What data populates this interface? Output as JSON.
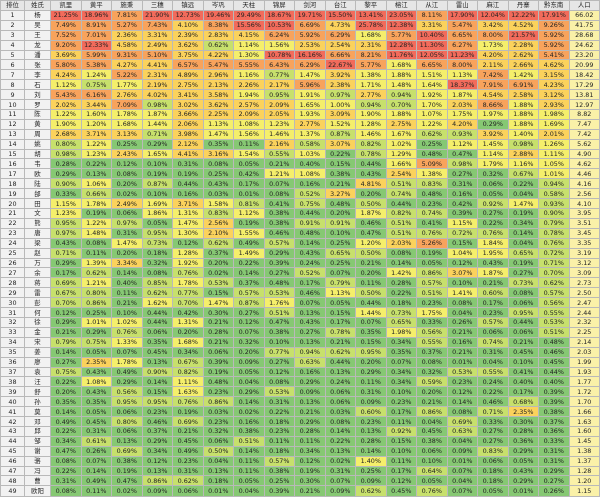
{
  "table": {
    "header": [
      "排位",
      "姓氏",
      "凯里",
      "黄平",
      "施秉",
      "三穗",
      "镇远",
      "岑巩",
      "天柱",
      "锦屏",
      "剑河",
      "台江",
      "黎平",
      "榕江",
      "从江",
      "雷山",
      "麻江",
      "丹寨",
      "黔东南",
      "人口"
    ],
    "rows": [
      [
        "1",
        "杨",
        "21.25%",
        "18.96%",
        "7.81%",
        "21.90%",
        "12.73%",
        "19.46%",
        "29.49%",
        "18.67%",
        "19.71%",
        "15.50%",
        "13.41%",
        "23.05%",
        "8.11%",
        "17.90%",
        "12.04%",
        "12.22%",
        "17.91%",
        "66.02"
      ],
      [
        "2",
        "吴",
        "7.49%",
        "8.91%",
        "5.27%",
        "7.43%",
        "4.10%",
        "8.38%",
        "15.56%",
        "10.53%",
        "6.69%",
        "4.73%",
        "25.78%",
        "12.38%",
        "3.31%",
        "5.47%",
        "3.42%",
        "4.52%",
        "9.26%",
        "41.75"
      ],
      [
        "3",
        "王",
        "7.52%",
        "7.01%",
        "2.36%",
        "3.31%",
        "2.39%",
        "2.83%",
        "4.15%",
        "6.24%",
        "5.92%",
        "6.29%",
        "1.68%",
        "5.77%",
        "10.40%",
        "6.65%",
        "8.00%",
        "21.57%",
        "5.92%",
        "28.68"
      ],
      [
        "4",
        "龙",
        "9.20%",
        "12.33%",
        "4.58%",
        "2.49%",
        "3.62%",
        "0.62%",
        "1.14%",
        "1.56%",
        "2.53%",
        "2.54%",
        "2.31%",
        "12.28%",
        "11.30%",
        "6.27%",
        "1.73%",
        "2.28%",
        "5.92%",
        "24.62"
      ],
      [
        "5",
        "潘",
        "3.69%",
        "5.99%",
        "9.31%",
        "5.10%",
        "3.75%",
        "4.22%",
        "1.30%",
        "10.78%",
        "16.16%",
        "6.66%",
        "8.21%",
        "11.76%",
        "12.05%",
        "11.23%",
        "4.20%",
        "2.62%",
        "5.41%",
        "23.20"
      ],
      [
        "6",
        "张",
        "5.80%",
        "5.38%",
        "4.27%",
        "4.41%",
        "6.57%",
        "5.47%",
        "5.55%",
        "6.43%",
        "6.29%",
        "22.67%",
        "5.77%",
        "1.68%",
        "6.65%",
        "8.00%",
        "2.11%",
        "2.66%",
        "4.62%",
        "20.99"
      ],
      [
        "7",
        "李",
        "4.24%",
        "1.24%",
        "5.22%",
        "2.31%",
        "4.89%",
        "2.96%",
        "1.16%",
        "0.77%",
        "1.47%",
        "3.92%",
        "1.38%",
        "1.88%",
        "1.51%",
        "1.13%",
        "7.42%",
        "1.42%",
        "3.15%",
        "18.42"
      ],
      [
        "8",
        "石",
        "1.12%",
        "0.75%",
        "1.77%",
        "2.19%",
        "2.75%",
        "2.13%",
        "2.26%",
        "2.17%",
        "5.96%",
        "2.38%",
        "1.71%",
        "1.48%",
        "1.64%",
        "18.37%",
        "7.91%",
        "6.91%",
        "4.23%",
        "17.29"
      ],
      [
        "9",
        "刘",
        "5.43%",
        "6.16%",
        "2.76%",
        "4.02%",
        "3.41%",
        "3.58%",
        "1.94%",
        "0.95%",
        "1.91%",
        "0.97%",
        "2.77%",
        "0.94%",
        "1.92%",
        "1.87%",
        "4.54%",
        "2.58%",
        "3.12%",
        "13.81"
      ],
      [
        "10",
        "罗",
        "2.02%",
        "3.44%",
        "7.09%",
        "0.98%",
        "3.02%",
        "3.62%",
        "2.57%",
        "2.09%",
        "1.65%",
        "1.00%",
        "0.94%",
        "0.70%",
        "1.70%",
        "2.03%",
        "8.66%",
        "1.88%",
        "2.93%",
        "12.97"
      ],
      [
        "11",
        "陈",
        "1.22%",
        "1.60%",
        "1.78%",
        "1.87%",
        "3.66%",
        "2.25%",
        "2.09%",
        "2.05%",
        "1.93%",
        "3.09%",
        "1.90%",
        "1.88%",
        "1.07%",
        "1.75%",
        "1.97%",
        "1.88%",
        "1.98%",
        "8.82"
      ],
      [
        "12",
        "黄",
        "1.90%",
        "1.20%",
        "1.68%",
        "1.44%",
        "2.06%",
        "1.13%",
        "1.08%",
        "1.23%",
        "2.77%",
        "1.52%",
        "1.28%",
        "2.75%",
        "1.22%",
        "4.20%",
        "0.29%",
        "1.88%",
        "1.69%",
        "7.47"
      ],
      [
        "13",
        "周",
        "2.68%",
        "3.71%",
        "3.13%",
        "0.71%",
        "3.98%",
        "1.47%",
        "1.56%",
        "1.46%",
        "1.37%",
        "0.87%",
        "1.46%",
        "1.67%",
        "0.62%",
        "0.93%",
        "3.92%",
        "1.40%",
        "2.01%",
        "7.42"
      ],
      [
        "14",
        "姚",
        "0.80%",
        "1.22%",
        "0.25%",
        "0.29%",
        "2.12%",
        "0.35%",
        "0.11%",
        "2.16%",
        "0.58%",
        "3.07%",
        "0.82%",
        "1.02%",
        "0.25%",
        "1.12%",
        "1.45%",
        "0.98%",
        "1.26%",
        "5.62"
      ],
      [
        "15",
        "胡",
        "0.98%",
        "1.23%",
        "2.43%",
        "1.65%",
        "4.41%",
        "3.16%",
        "1.54%",
        "0.55%",
        "1.03%",
        "0.22%",
        "0.78%",
        "1.29%",
        "0.48%",
        "0.47%",
        "1.14%",
        "2.88%",
        "1.11%",
        "4.90"
      ],
      [
        "16",
        "韦",
        "0.28%",
        "0.22%",
        "0.12%",
        "0.10%",
        "0.31%",
        "0.08%",
        "0.05%",
        "0.21%",
        "0.40%",
        "0.15%",
        "0.44%",
        "1.66%",
        "5.09%",
        "0.98%",
        "1.79%",
        "1.16%",
        "1.05%",
        "4.62"
      ],
      [
        "17",
        "欧",
        "0.29%",
        "0.13%",
        "0.08%",
        "0.19%",
        "0.19%",
        "0.25%",
        "0.42%",
        "1.21%",
        "1.08%",
        "0.38%",
        "0.43%",
        "2.54%",
        "1.38%",
        "0.27%",
        "0.32%",
        "0.67%",
        "1.01%",
        "4.46"
      ],
      [
        "18",
        "陆",
        "0.90%",
        "1.06%",
        "0.20%",
        "0.87%",
        "0.44%",
        "0.43%",
        "0.17%",
        "0.07%",
        "0.16%",
        "0.21%",
        "4.81%",
        "0.51%",
        "0.83%",
        "0.31%",
        "0.06%",
        "0.22%",
        "0.94%",
        "4.16"
      ],
      [
        "19",
        "邰",
        "0.33%",
        "0.66%",
        "0.02%",
        "0.10%",
        "0.16%",
        "0.03%",
        "0.01%",
        "0.08%",
        "0.52%",
        "3.27%",
        "0.20%",
        "0.74%",
        "0.48%",
        "0.16%",
        "0.05%",
        "0.04%",
        "0.58%",
        "2.56"
      ],
      [
        "20",
        "田",
        "1.15%",
        "1.78%",
        "2.49%",
        "1.69%",
        "3.71%",
        "1.58%",
        "0.81%",
        "0.41%",
        "0.75%",
        "0.48%",
        "0.50%",
        "0.44%",
        "0.23%",
        "0.42%",
        "0.92%",
        "1.47%",
        "0.93%",
        "4.10"
      ],
      [
        "21",
        "文",
        "1.23%",
        "0.19%",
        "0.06%",
        "1.86%",
        "1.31%",
        "0.83%",
        "1.12%",
        "0.38%",
        "0.44%",
        "0.20%",
        "1.87%",
        "0.82%",
        "0.74%",
        "0.39%",
        "0.27%",
        "0.19%",
        "0.90%",
        "3.95"
      ],
      [
        "22",
        "熊",
        "0.95%",
        "1.22%",
        "0.97%",
        "0.05%",
        "1.47%",
        "2.56%",
        "0.19%",
        "0.38%",
        "0.91%",
        "0.91%",
        "0.46%",
        "0.51%",
        "0.41%",
        "1.15%",
        "0.22%",
        "0.34%",
        "0.79%",
        "3.51"
      ],
      [
        "23",
        "唐",
        "0.97%",
        "1.48%",
        "0.31%",
        "0.95%",
        "1.30%",
        "2.10%",
        "1.55%",
        "0.46%",
        "0.48%",
        "0.10%",
        "0.47%",
        "0.51%",
        "0.76%",
        "0.72%",
        "0.76%",
        "0.14%",
        "0.78%",
        "3.45"
      ],
      [
        "24",
        "梁",
        "0.43%",
        "0.08%",
        "1.47%",
        "0.73%",
        "0.12%",
        "0.62%",
        "0.49%",
        "0.57%",
        "0.14%",
        "0.25%",
        "1.20%",
        "2.03%",
        "5.26%",
        "0.15%",
        "1.84%",
        "0.04%",
        "0.76%",
        "3.35"
      ],
      [
        "25",
        "赵",
        "0.71%",
        "0.11%",
        "0.20%",
        "0.18%",
        "1.28%",
        "0.37%",
        "1.49%",
        "0.29%",
        "0.43%",
        "0.65%",
        "0.50%",
        "0.08%",
        "0.19%",
        "1.04%",
        "1.95%",
        "0.65%",
        "0.72%",
        "3.19"
      ],
      [
        "26",
        "万",
        "0.29%",
        "1.39%",
        "3.34%",
        "0.32%",
        "1.92%",
        "0.20%",
        "0.22%",
        "0.39%",
        "0.24%",
        "0.25%",
        "0.21%",
        "0.14%",
        "0.05%",
        "0.12%",
        "0.43%",
        "0.19%",
        "0.71%",
        "3.12"
      ],
      [
        "27",
        "余",
        "0.17%",
        "0.62%",
        "0.14%",
        "0.08%",
        "0.76%",
        "0.02%",
        "0.14%",
        "0.27%",
        "0.52%",
        "0.07%",
        "0.20%",
        "1.42%",
        "0.86%",
        "3.07%",
        "1.87%",
        "0.27%",
        "0.70%",
        "3.09"
      ],
      [
        "28",
        "蒋",
        "0.69%",
        "1.21%",
        "0.40%",
        "0.85%",
        "1.78%",
        "0.53%",
        "0.37%",
        "0.48%",
        "0.17%",
        "0.79%",
        "0.11%",
        "0.28%",
        "0.57%",
        "0.10%",
        "0.21%",
        "0.73%",
        "0.62%",
        "2.73"
      ],
      [
        "29",
        "雷",
        "0.67%",
        "0.80%",
        "0.11%",
        "0.62%",
        "0.77%",
        "0.15%",
        "0.57%",
        "0.53%",
        "0.46%",
        "1.13%",
        "0.50%",
        "0.22%",
        "0.51%",
        "1.41%",
        "0.60%",
        "0.08%",
        "0.57%",
        "2.50"
      ],
      [
        "30",
        "彭",
        "0.70%",
        "0.86%",
        "0.21%",
        "1.62%",
        "0.70%",
        "1.47%",
        "0.87%",
        "1.76%",
        "0.07%",
        "0.05%",
        "0.44%",
        "0.18%",
        "0.23%",
        "0.08%",
        "0.17%",
        "0.06%",
        "0.56%",
        "2.47"
      ],
      [
        "31",
        "何",
        "0.12%",
        "0.25%",
        "0.10%",
        "0.44%",
        "0.42%",
        "0.30%",
        "0.27%",
        "0.51%",
        "0.13%",
        "0.15%",
        "1.44%",
        "0.73%",
        "1.75%",
        "0.04%",
        "0.23%",
        "0.95%",
        "0.55%",
        "2.44"
      ],
      [
        "32",
        "徐",
        "0.29%",
        "1.01%",
        "1.02%",
        "0.44%",
        "1.31%",
        "0.21%",
        "0.12%",
        "0.47%",
        "0.43%",
        "0.17%",
        "0.07%",
        "0.65%",
        "0.33%",
        "0.26%",
        "0.57%",
        "0.44%",
        "0.53%",
        "2.32"
      ],
      [
        "33",
        "金",
        "0.21%",
        "0.29%",
        "0.76%",
        "0.06%",
        "0.20%",
        "0.28%",
        "0.07%",
        "0.38%",
        "0.27%",
        "0.78%",
        "0.35%",
        "1.98%",
        "0.56%",
        "0.21%",
        "0.06%",
        "0.06%",
        "0.51%",
        "2.25"
      ],
      [
        "34",
        "宋",
        "0.79%",
        "0.75%",
        "1.33%",
        "0.35%",
        "1.68%",
        "0.21%",
        "0.32%",
        "0.10%",
        "0.13%",
        "0.21%",
        "0.15%",
        "0.34%",
        "0.55%",
        "0.16%",
        "0.74%",
        "0.21%",
        "0.48%",
        "2.14"
      ],
      [
        "35",
        "姜",
        "0.14%",
        "0.05%",
        "0.07%",
        "0.45%",
        "0.34%",
        "0.06%",
        "0.20%",
        "0.77%",
        "0.94%",
        "0.62%",
        "0.95%",
        "0.35%",
        "0.37%",
        "0.21%",
        "0.31%",
        "0.45%",
        "0.46%",
        "2.03"
      ],
      [
        "36",
        "廖",
        "0.27%",
        "2.35%",
        "1.78%",
        "0.13%",
        "0.67%",
        "0.39%",
        "0.09%",
        "0.27%",
        "0.63%",
        "0.44%",
        "0.20%",
        "0.07%",
        "0.08%",
        "0.01%",
        "0.04%",
        "0.10%",
        "0.45%",
        "1.99"
      ],
      [
        "37",
        "袁",
        "0.75%",
        "0.43%",
        "0.49%",
        "0.90%",
        "0.82%",
        "0.19%",
        "0.05%",
        "0.12%",
        "0.16%",
        "0.13%",
        "0.29%",
        "0.34%",
        "0.32%",
        "0.53%",
        "0.55%",
        "0.41%",
        "0.44%",
        "1.93"
      ],
      [
        "38",
        "汪",
        "0.22%",
        "1.08%",
        "0.29%",
        "0.14%",
        "1.11%",
        "0.48%",
        "0.04%",
        "0.08%",
        "0.29%",
        "0.24%",
        "0.11%",
        "0.34%",
        "0.59%",
        "0.23%",
        "0.24%",
        "0.40%",
        "0.40%",
        "1.77"
      ],
      [
        "39",
        "舒",
        "0.20%",
        "0.43%",
        "0.56%",
        "0.15%",
        "1.63%",
        "0.23%",
        "0.29%",
        "0.53%",
        "0.09%",
        "0.06%",
        "0.31%",
        "0.10%",
        "0.20%",
        "0.12%",
        "0.22%",
        "0.17%",
        "0.39%",
        "1.72"
      ],
      [
        "40",
        "孙",
        "0.35%",
        "0.35%",
        "0.95%",
        "0.95%",
        "0.76%",
        "0.86%",
        "0.14%",
        "0.31%",
        "0.13%",
        "0.06%",
        "0.09%",
        "0.23%",
        "0.21%",
        "0.14%",
        "0.46%",
        "0.68%",
        "0.39%",
        "1.70"
      ],
      [
        "41",
        "莫",
        "0.14%",
        "0.05%",
        "0.06%",
        "0.23%",
        "0.19%",
        "0.03%",
        "0.02%",
        "0.22%",
        "0.21%",
        "0.03%",
        "0.60%",
        "0.17%",
        "0.86%",
        "0.08%",
        "0.71%",
        "2.35%",
        "0.38%",
        "1.66"
      ],
      [
        "42",
        "邓",
        "0.49%",
        "0.45%",
        "0.80%",
        "0.46%",
        "0.69%",
        "0.23%",
        "0.16%",
        "0.18%",
        "0.29%",
        "0.08%",
        "0.23%",
        "0.11%",
        "0.04%",
        "0.69%",
        "0.33%",
        "0.30%",
        "0.37%",
        "1.63"
      ],
      [
        "43",
        "邱",
        "0.22%",
        "0.31%",
        "0.06%",
        "0.37%",
        "0.21%",
        "0.32%",
        "0.38%",
        "0.23%",
        "0.28%",
        "0.14%",
        "0.13%",
        "0.92%",
        "0.45%",
        "0.63%",
        "0.27%",
        "0.28%",
        "0.36%",
        "1.60"
      ],
      [
        "44",
        "邹",
        "0.34%",
        "0.61%",
        "0.13%",
        "0.29%",
        "0.45%",
        "0.06%",
        "0.51%",
        "0.11%",
        "0.11%",
        "0.22%",
        "0.28%",
        "0.15%",
        "0.38%",
        "0.04%",
        "0.27%",
        "0.36%",
        "0.33%",
        "1.45"
      ],
      [
        "45",
        "谢",
        "0.47%",
        "0.26%",
        "0.69%",
        "0.34%",
        "0.49%",
        "0.50%",
        "0.14%",
        "0.18%",
        "0.34%",
        "0.13%",
        "0.14%",
        "0.10%",
        "0.06%",
        "0.09%",
        "0.83%",
        "0.29%",
        "0.31%",
        "1.38"
      ],
      [
        "46",
        "骆",
        "0.08%",
        "0.07%",
        "0.38%",
        "0.12%",
        "0.23%",
        "0.04%",
        "0.11%",
        "0.57%",
        "0.12%",
        "0.02%",
        "1.40%",
        "0.11%",
        "0.10%",
        "0.01%",
        "0.06%",
        "0.05%",
        "0.31%",
        "1.37"
      ],
      [
        "47",
        "冯",
        "0.22%",
        "0.14%",
        "0.19%",
        "0.13%",
        "0.31%",
        "0.13%",
        "0.11%",
        "0.38%",
        "0.19%",
        "0.31%",
        "0.25%",
        "0.17%",
        "0.64%",
        "0.07%",
        "0.18%",
        "0.43%",
        "0.29%",
        "1.28"
      ],
      [
        "48",
        "曹",
        "0.31%",
        "0.49%",
        "0.47%",
        "0.86%",
        "0.62%",
        "0.18%",
        "0.05%",
        "0.25%",
        "0.30%",
        "0.07%",
        "0.09%",
        "0.12%",
        "0.05%",
        "0.04%",
        "0.18%",
        "0.29%",
        "0.27%",
        "1.20"
      ],
      [
        "49",
        "欧阳",
        "0.08%",
        "0.11%",
        "0.02%",
        "0.09%",
        "0.06%",
        "0.01%",
        "0.04%",
        "0.39%",
        "0.21%",
        "0.09%",
        "0.62%",
        "0.45%",
        "0.76%",
        "0.07%",
        "0.05%",
        "0.01%",
        "0.26%",
        "1.15"
      ]
    ]
  }
}
